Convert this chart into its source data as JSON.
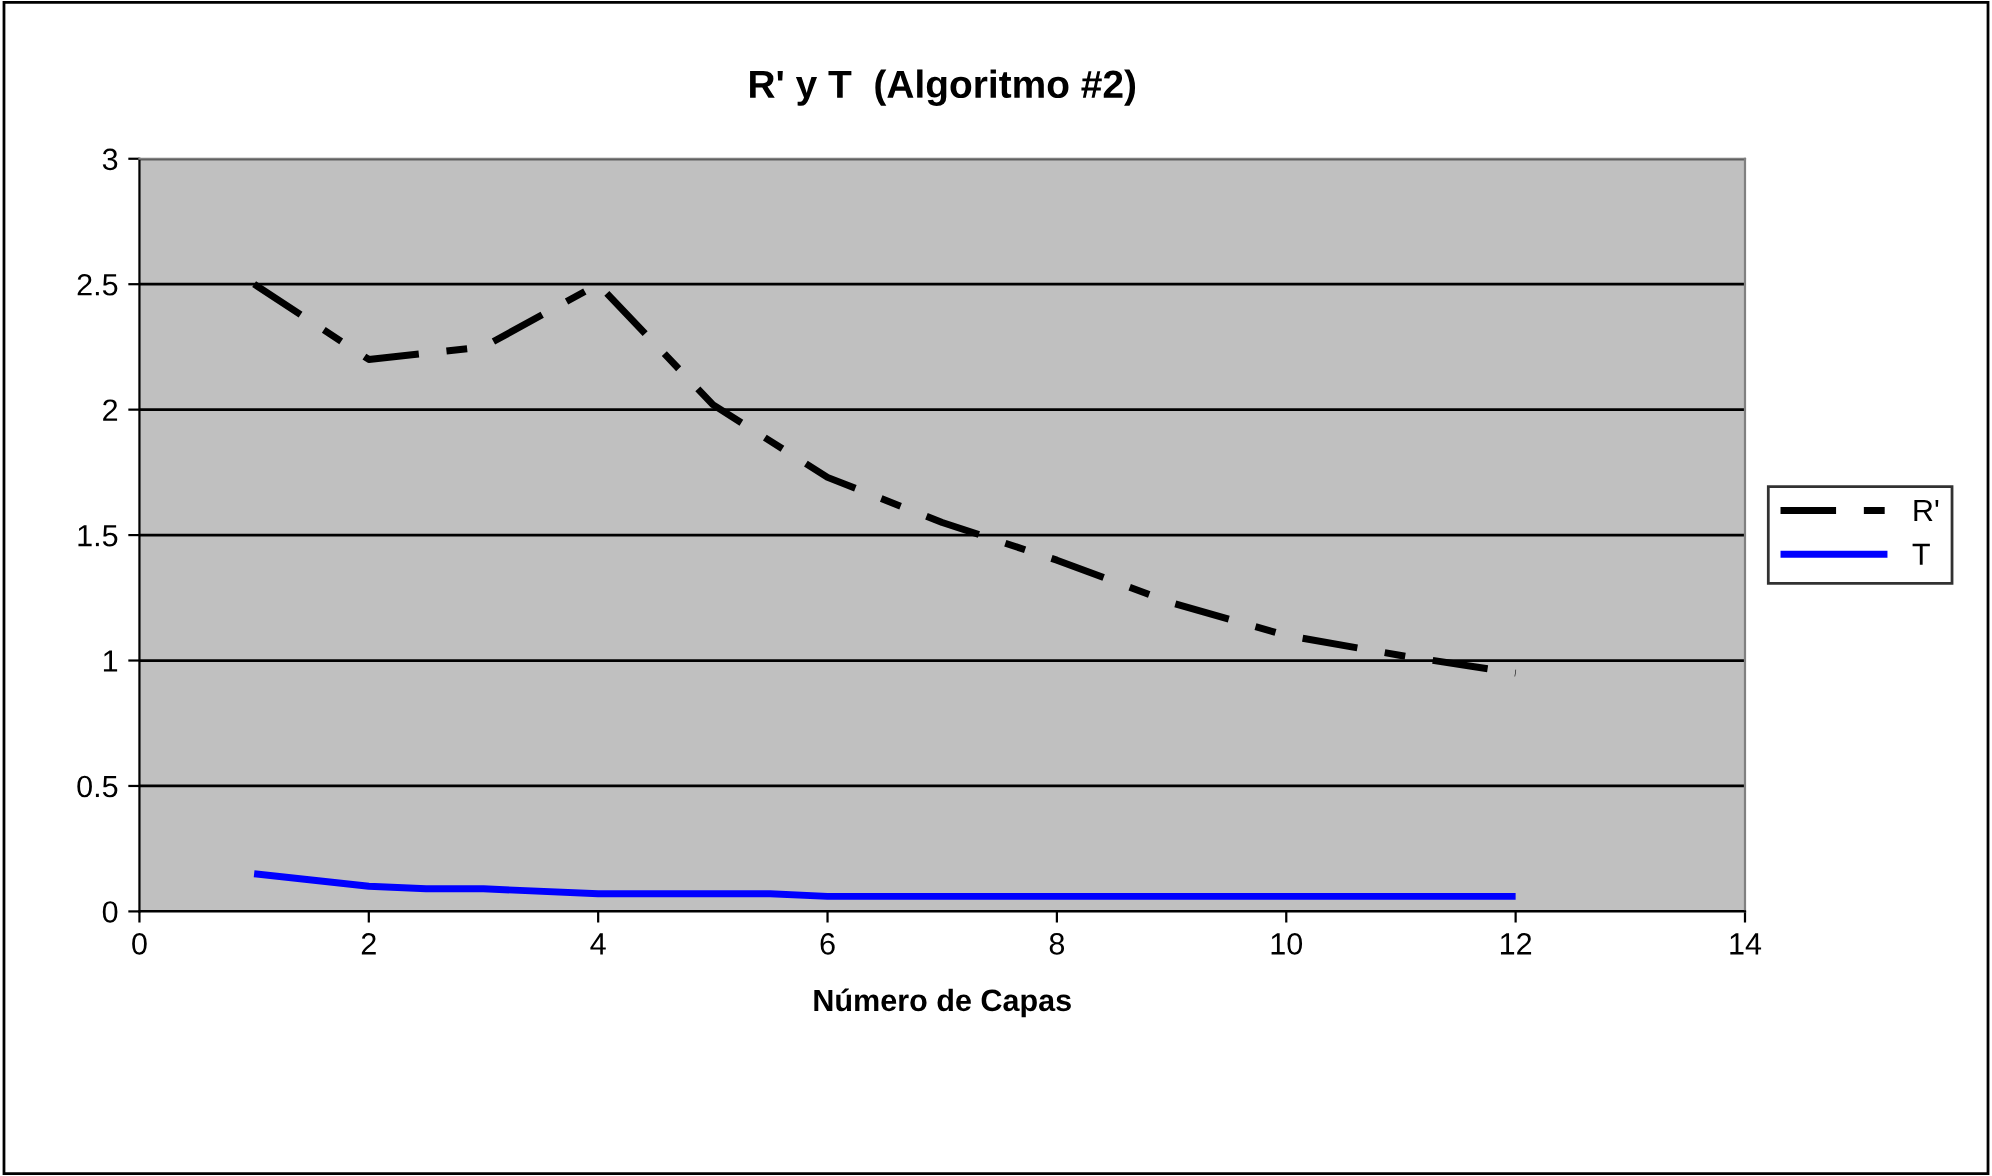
{
  "chart_data": {
    "type": "line",
    "title": "R' y T  (Algoritmo #2)",
    "xlabel": "Número de Capas",
    "series": [
      {
        "name": "R'",
        "color": "#000000",
        "line_style": "dashed",
        "x": [
          1,
          2,
          3,
          4,
          5,
          6,
          7,
          8,
          9,
          10,
          11,
          12
        ],
        "values": [
          2.5,
          2.2,
          2.25,
          2.5,
          2.02,
          1.73,
          1.55,
          1.4,
          1.23,
          1.1,
          1.02,
          0.95
        ]
      },
      {
        "name": "T",
        "color": "#0000ff",
        "line_style": "solid",
        "x": [
          1,
          2,
          2.5,
          3,
          4,
          5.5,
          6,
          12
        ],
        "values": [
          0.15,
          0.1,
          0.09,
          0.09,
          0.07,
          0.07,
          0.06,
          0.06
        ]
      }
    ],
    "xlim": [
      0,
      14
    ],
    "xticks": [
      0,
      2,
      4,
      6,
      8,
      10,
      12,
      14
    ],
    "ylim": [
      0,
      3
    ],
    "yticks": [
      0,
      0.5,
      1,
      1.5,
      2,
      2.5,
      3
    ],
    "grid": "y",
    "legend": "right",
    "marker": "none"
  }
}
